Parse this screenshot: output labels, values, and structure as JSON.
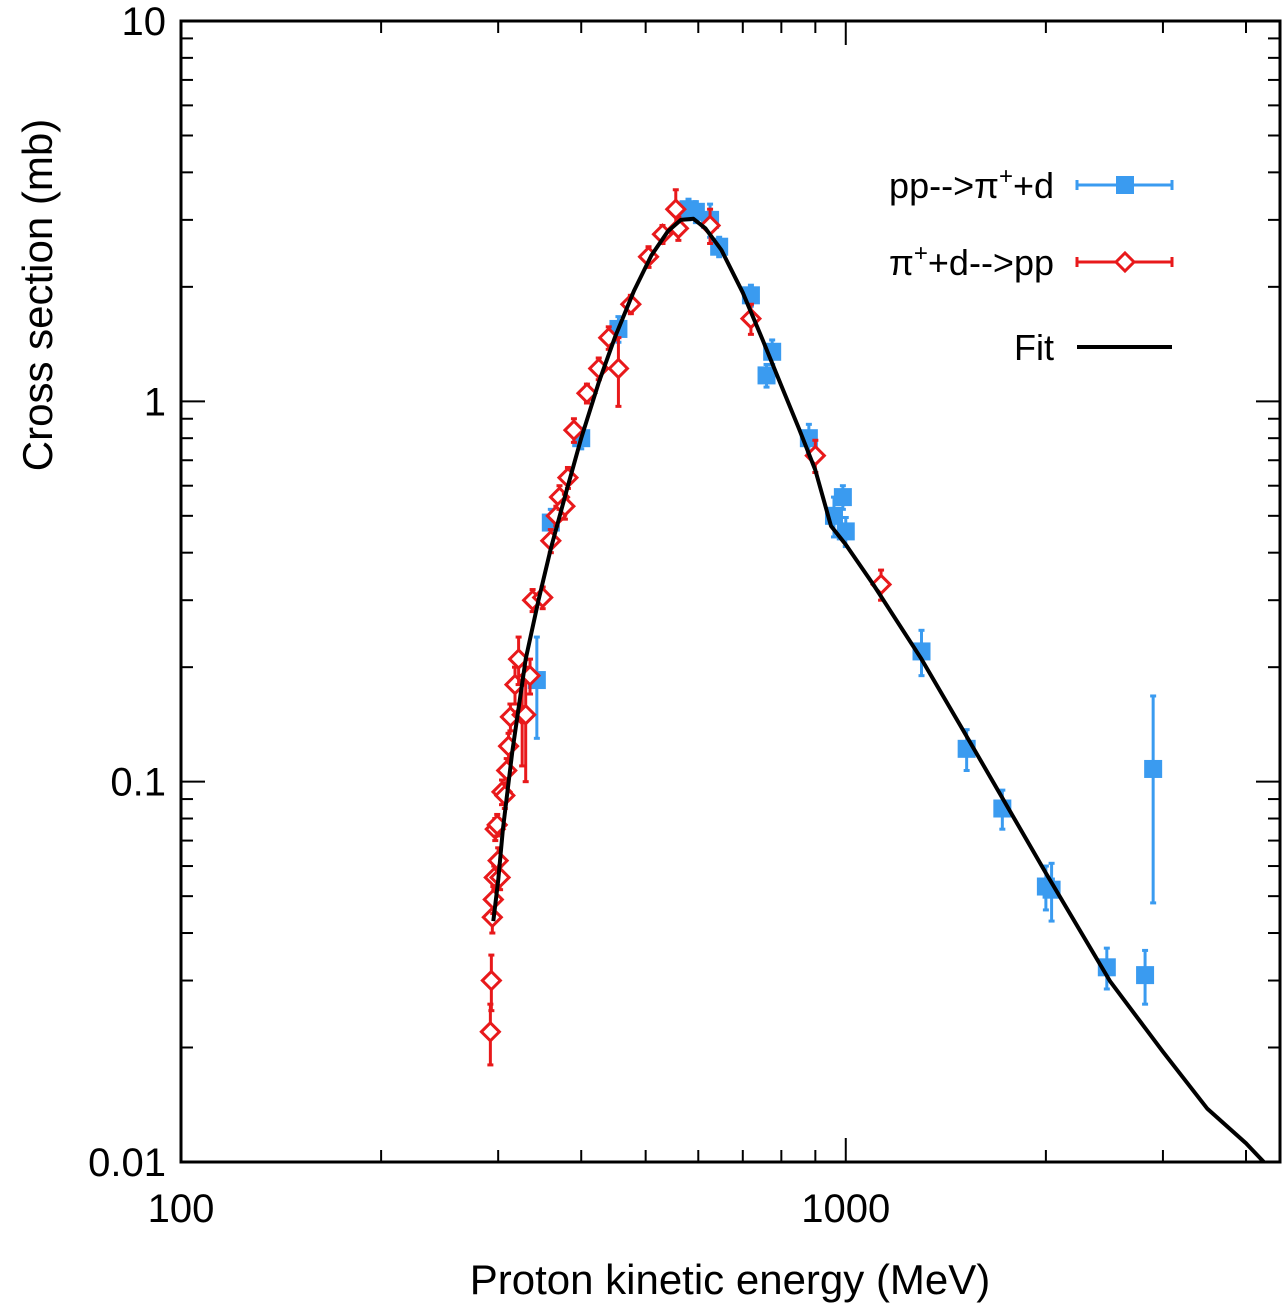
{
  "chart_data": {
    "type": "scatter",
    "title": "",
    "xlabel": "Proton kinetic energy (MeV)",
    "ylabel": "Cross section (mb)",
    "xscale": "log",
    "yscale": "log",
    "xlim": [
      100,
      4500
    ],
    "ylim": [
      0.01,
      10
    ],
    "x_tick_labels": [
      {
        "value": 100,
        "label": "100"
      },
      {
        "value": 1000,
        "label": "1000"
      }
    ],
    "y_tick_labels": [
      {
        "value": 0.01,
        "label": "0.01"
      },
      {
        "value": 0.1,
        "label": "0.1"
      },
      {
        "value": 1,
        "label": "1"
      },
      {
        "value": 10,
        "label": "10"
      }
    ],
    "legend_position": "top-right",
    "grid": false,
    "series": [
      {
        "name": "pp-->π⁺+d",
        "legend": {
          "main": "pp-->π",
          "sup": "+",
          "rest": "+d"
        },
        "marker": "filled-square",
        "color": "#3a9bf0",
        "points": [
          {
            "x": 343,
            "y": 0.185,
            "err": 0.055
          },
          {
            "x": 360,
            "y": 0.48,
            "err": 0.04
          },
          {
            "x": 400,
            "y": 0.8,
            "err": 0.05
          },
          {
            "x": 455,
            "y": 1.55,
            "err": 0.12
          },
          {
            "x": 580,
            "y": 3.2,
            "err": 0.2
          },
          {
            "x": 595,
            "y": 3.15,
            "err": 0.2
          },
          {
            "x": 625,
            "y": 3.0,
            "err": 0.3
          },
          {
            "x": 645,
            "y": 2.55,
            "err": 0.15
          },
          {
            "x": 720,
            "y": 1.9,
            "err": 0.12
          },
          {
            "x": 775,
            "y": 1.35,
            "err": 0.1
          },
          {
            "x": 760,
            "y": 1.17,
            "err": 0.08
          },
          {
            "x": 880,
            "y": 0.8,
            "err": 0.07
          },
          {
            "x": 960,
            "y": 0.5,
            "err": 0.06
          },
          {
            "x": 990,
            "y": 0.56,
            "err": 0.04
          },
          {
            "x": 1000,
            "y": 0.455,
            "err": 0.04
          },
          {
            "x": 1300,
            "y": 0.22,
            "err": 0.03
          },
          {
            "x": 1520,
            "y": 0.122,
            "err": 0.015
          },
          {
            "x": 1720,
            "y": 0.085,
            "err": 0.01
          },
          {
            "x": 2000,
            "y": 0.053,
            "err": 0.007
          },
          {
            "x": 2040,
            "y": 0.052,
            "err": 0.009
          },
          {
            "x": 2470,
            "y": 0.0325,
            "err": 0.004
          },
          {
            "x": 2820,
            "y": 0.031,
            "err": 0.005
          },
          {
            "x": 2900,
            "y": 0.108,
            "err": 0.06
          }
        ]
      },
      {
        "name": "π⁺+d-->pp",
        "legend": {
          "main": "π",
          "sup": "+",
          "rest": "+d-->pp"
        },
        "marker": "open-diamond",
        "color": "#e8191b",
        "points": [
          {
            "x": 292,
            "y": 0.022,
            "err": 0.004
          },
          {
            "x": 293,
            "y": 0.03,
            "err": 0.005
          },
          {
            "x": 294,
            "y": 0.044,
            "err": 0.004
          },
          {
            "x": 295,
            "y": 0.049,
            "err": 0.004
          },
          {
            "x": 296,
            "y": 0.056,
            "err": 0.004
          },
          {
            "x": 297,
            "y": 0.075,
            "err": 0.005
          },
          {
            "x": 299,
            "y": 0.077,
            "err": 0.005
          },
          {
            "x": 300,
            "y": 0.062,
            "err": 0.005
          },
          {
            "x": 302,
            "y": 0.056,
            "err": 0.004
          },
          {
            "x": 304,
            "y": 0.094,
            "err": 0.007
          },
          {
            "x": 307,
            "y": 0.092,
            "err": 0.007
          },
          {
            "x": 309,
            "y": 0.107,
            "err": 0.008
          },
          {
            "x": 311,
            "y": 0.124,
            "err": 0.01
          },
          {
            "x": 313,
            "y": 0.148,
            "err": 0.012
          },
          {
            "x": 318,
            "y": 0.18,
            "err": 0.02
          },
          {
            "x": 322,
            "y": 0.21,
            "err": 0.03
          },
          {
            "x": 326,
            "y": 0.15,
            "err": 0.04
          },
          {
            "x": 330,
            "y": 0.15,
            "err": 0.05
          },
          {
            "x": 335,
            "y": 0.19,
            "err": 0.02
          },
          {
            "x": 338,
            "y": 0.3,
            "err": 0.02
          },
          {
            "x": 350,
            "y": 0.305,
            "err": 0.02
          },
          {
            "x": 360,
            "y": 0.43,
            "err": 0.03
          },
          {
            "x": 367,
            "y": 0.5,
            "err": 0.03
          },
          {
            "x": 371,
            "y": 0.56,
            "err": 0.04
          },
          {
            "x": 378,
            "y": 0.53,
            "err": 0.04
          },
          {
            "x": 382,
            "y": 0.63,
            "err": 0.04
          },
          {
            "x": 390,
            "y": 0.84,
            "err": 0.06
          },
          {
            "x": 408,
            "y": 1.05,
            "err": 0.06
          },
          {
            "x": 425,
            "y": 1.22,
            "err": 0.08
          },
          {
            "x": 440,
            "y": 1.47,
            "err": 0.1
          },
          {
            "x": 455,
            "y": 1.22,
            "err": 0.25
          },
          {
            "x": 475,
            "y": 1.8,
            "err": 0.1
          },
          {
            "x": 505,
            "y": 2.4,
            "err": 0.15
          },
          {
            "x": 530,
            "y": 2.75,
            "err": 0.15
          },
          {
            "x": 555,
            "y": 3.2,
            "err": 0.4
          },
          {
            "x": 560,
            "y": 2.85,
            "err": 0.2
          },
          {
            "x": 625,
            "y": 2.9,
            "err": 0.3
          },
          {
            "x": 720,
            "y": 1.65,
            "err": 0.15
          },
          {
            "x": 900,
            "y": 0.72,
            "err": 0.07
          },
          {
            "x": 1130,
            "y": 0.33,
            "err": 0.03
          }
        ]
      },
      {
        "name": "Fit",
        "legend": {
          "main": "Fit",
          "sup": "",
          "rest": ""
        },
        "marker": "line",
        "color": "#000000",
        "points": [
          {
            "x": 295,
            "y": 0.043
          },
          {
            "x": 300,
            "y": 0.055
          },
          {
            "x": 305,
            "y": 0.075
          },
          {
            "x": 315,
            "y": 0.12
          },
          {
            "x": 330,
            "y": 0.21
          },
          {
            "x": 345,
            "y": 0.3
          },
          {
            "x": 360,
            "y": 0.41
          },
          {
            "x": 380,
            "y": 0.58
          },
          {
            "x": 400,
            "y": 0.8
          },
          {
            "x": 425,
            "y": 1.12
          },
          {
            "x": 450,
            "y": 1.48
          },
          {
            "x": 480,
            "y": 1.95
          },
          {
            "x": 510,
            "y": 2.42
          },
          {
            "x": 540,
            "y": 2.8
          },
          {
            "x": 565,
            "y": 3.0
          },
          {
            "x": 590,
            "y": 3.02
          },
          {
            "x": 615,
            "y": 2.85
          },
          {
            "x": 650,
            "y": 2.5
          },
          {
            "x": 700,
            "y": 1.93
          },
          {
            "x": 750,
            "y": 1.45
          },
          {
            "x": 800,
            "y": 1.1
          },
          {
            "x": 850,
            "y": 0.85
          },
          {
            "x": 900,
            "y": 0.66
          },
          {
            "x": 950,
            "y": 0.47
          },
          {
            "x": 1000,
            "y": 0.42
          },
          {
            "x": 1100,
            "y": 0.33
          },
          {
            "x": 1300,
            "y": 0.21
          },
          {
            "x": 1500,
            "y": 0.137
          },
          {
            "x": 2000,
            "y": 0.0575
          },
          {
            "x": 2500,
            "y": 0.0298
          },
          {
            "x": 3000,
            "y": 0.0195
          },
          {
            "x": 3500,
            "y": 0.0138
          },
          {
            "x": 4000,
            "y": 0.0112
          },
          {
            "x": 4350,
            "y": 0.0096
          }
        ]
      }
    ]
  }
}
